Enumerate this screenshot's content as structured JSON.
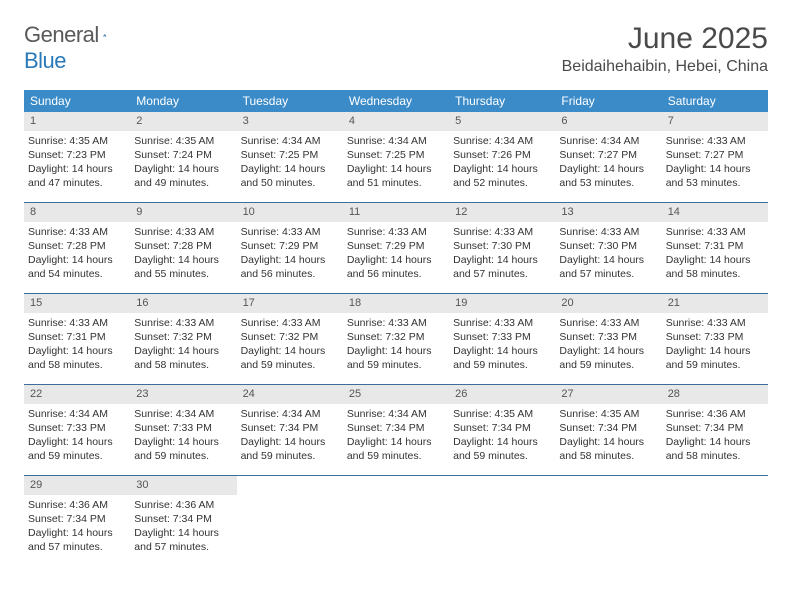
{
  "logo": {
    "word1": "General",
    "word2": "Blue"
  },
  "title": "June 2025",
  "location": "Beidaihehaibin, Hebei, China",
  "colors": {
    "header_bg": "#3b8bc9",
    "header_text": "#ffffff",
    "daynum_bg": "#e8e8e8",
    "divider": "#3b6e9a",
    "text": "#333333",
    "logo_gray": "#58595b",
    "logo_blue": "#2a7ab9"
  },
  "day_headers": [
    "Sunday",
    "Monday",
    "Tuesday",
    "Wednesday",
    "Thursday",
    "Friday",
    "Saturday"
  ],
  "weeks": [
    [
      {
        "num": "1",
        "sunrise": "Sunrise: 4:35 AM",
        "sunset": "Sunset: 7:23 PM",
        "day1": "Daylight: 14 hours",
        "day2": "and 47 minutes."
      },
      {
        "num": "2",
        "sunrise": "Sunrise: 4:35 AM",
        "sunset": "Sunset: 7:24 PM",
        "day1": "Daylight: 14 hours",
        "day2": "and 49 minutes."
      },
      {
        "num": "3",
        "sunrise": "Sunrise: 4:34 AM",
        "sunset": "Sunset: 7:25 PM",
        "day1": "Daylight: 14 hours",
        "day2": "and 50 minutes."
      },
      {
        "num": "4",
        "sunrise": "Sunrise: 4:34 AM",
        "sunset": "Sunset: 7:25 PM",
        "day1": "Daylight: 14 hours",
        "day2": "and 51 minutes."
      },
      {
        "num": "5",
        "sunrise": "Sunrise: 4:34 AM",
        "sunset": "Sunset: 7:26 PM",
        "day1": "Daylight: 14 hours",
        "day2": "and 52 minutes."
      },
      {
        "num": "6",
        "sunrise": "Sunrise: 4:34 AM",
        "sunset": "Sunset: 7:27 PM",
        "day1": "Daylight: 14 hours",
        "day2": "and 53 minutes."
      },
      {
        "num": "7",
        "sunrise": "Sunrise: 4:33 AM",
        "sunset": "Sunset: 7:27 PM",
        "day1": "Daylight: 14 hours",
        "day2": "and 53 minutes."
      }
    ],
    [
      {
        "num": "8",
        "sunrise": "Sunrise: 4:33 AM",
        "sunset": "Sunset: 7:28 PM",
        "day1": "Daylight: 14 hours",
        "day2": "and 54 minutes."
      },
      {
        "num": "9",
        "sunrise": "Sunrise: 4:33 AM",
        "sunset": "Sunset: 7:28 PM",
        "day1": "Daylight: 14 hours",
        "day2": "and 55 minutes."
      },
      {
        "num": "10",
        "sunrise": "Sunrise: 4:33 AM",
        "sunset": "Sunset: 7:29 PM",
        "day1": "Daylight: 14 hours",
        "day2": "and 56 minutes."
      },
      {
        "num": "11",
        "sunrise": "Sunrise: 4:33 AM",
        "sunset": "Sunset: 7:29 PM",
        "day1": "Daylight: 14 hours",
        "day2": "and 56 minutes."
      },
      {
        "num": "12",
        "sunrise": "Sunrise: 4:33 AM",
        "sunset": "Sunset: 7:30 PM",
        "day1": "Daylight: 14 hours",
        "day2": "and 57 minutes."
      },
      {
        "num": "13",
        "sunrise": "Sunrise: 4:33 AM",
        "sunset": "Sunset: 7:30 PM",
        "day1": "Daylight: 14 hours",
        "day2": "and 57 minutes."
      },
      {
        "num": "14",
        "sunrise": "Sunrise: 4:33 AM",
        "sunset": "Sunset: 7:31 PM",
        "day1": "Daylight: 14 hours",
        "day2": "and 58 minutes."
      }
    ],
    [
      {
        "num": "15",
        "sunrise": "Sunrise: 4:33 AM",
        "sunset": "Sunset: 7:31 PM",
        "day1": "Daylight: 14 hours",
        "day2": "and 58 minutes."
      },
      {
        "num": "16",
        "sunrise": "Sunrise: 4:33 AM",
        "sunset": "Sunset: 7:32 PM",
        "day1": "Daylight: 14 hours",
        "day2": "and 58 minutes."
      },
      {
        "num": "17",
        "sunrise": "Sunrise: 4:33 AM",
        "sunset": "Sunset: 7:32 PM",
        "day1": "Daylight: 14 hours",
        "day2": "and 59 minutes."
      },
      {
        "num": "18",
        "sunrise": "Sunrise: 4:33 AM",
        "sunset": "Sunset: 7:32 PM",
        "day1": "Daylight: 14 hours",
        "day2": "and 59 minutes."
      },
      {
        "num": "19",
        "sunrise": "Sunrise: 4:33 AM",
        "sunset": "Sunset: 7:33 PM",
        "day1": "Daylight: 14 hours",
        "day2": "and 59 minutes."
      },
      {
        "num": "20",
        "sunrise": "Sunrise: 4:33 AM",
        "sunset": "Sunset: 7:33 PM",
        "day1": "Daylight: 14 hours",
        "day2": "and 59 minutes."
      },
      {
        "num": "21",
        "sunrise": "Sunrise: 4:33 AM",
        "sunset": "Sunset: 7:33 PM",
        "day1": "Daylight: 14 hours",
        "day2": "and 59 minutes."
      }
    ],
    [
      {
        "num": "22",
        "sunrise": "Sunrise: 4:34 AM",
        "sunset": "Sunset: 7:33 PM",
        "day1": "Daylight: 14 hours",
        "day2": "and 59 minutes."
      },
      {
        "num": "23",
        "sunrise": "Sunrise: 4:34 AM",
        "sunset": "Sunset: 7:33 PM",
        "day1": "Daylight: 14 hours",
        "day2": "and 59 minutes."
      },
      {
        "num": "24",
        "sunrise": "Sunrise: 4:34 AM",
        "sunset": "Sunset: 7:34 PM",
        "day1": "Daylight: 14 hours",
        "day2": "and 59 minutes."
      },
      {
        "num": "25",
        "sunrise": "Sunrise: 4:34 AM",
        "sunset": "Sunset: 7:34 PM",
        "day1": "Daylight: 14 hours",
        "day2": "and 59 minutes."
      },
      {
        "num": "26",
        "sunrise": "Sunrise: 4:35 AM",
        "sunset": "Sunset: 7:34 PM",
        "day1": "Daylight: 14 hours",
        "day2": "and 59 minutes."
      },
      {
        "num": "27",
        "sunrise": "Sunrise: 4:35 AM",
        "sunset": "Sunset: 7:34 PM",
        "day1": "Daylight: 14 hours",
        "day2": "and 58 minutes."
      },
      {
        "num": "28",
        "sunrise": "Sunrise: 4:36 AM",
        "sunset": "Sunset: 7:34 PM",
        "day1": "Daylight: 14 hours",
        "day2": "and 58 minutes."
      }
    ],
    [
      {
        "num": "29",
        "sunrise": "Sunrise: 4:36 AM",
        "sunset": "Sunset: 7:34 PM",
        "day1": "Daylight: 14 hours",
        "day2": "and 57 minutes."
      },
      {
        "num": "30",
        "sunrise": "Sunrise: 4:36 AM",
        "sunset": "Sunset: 7:34 PM",
        "day1": "Daylight: 14 hours",
        "day2": "and 57 minutes."
      },
      null,
      null,
      null,
      null,
      null
    ]
  ]
}
